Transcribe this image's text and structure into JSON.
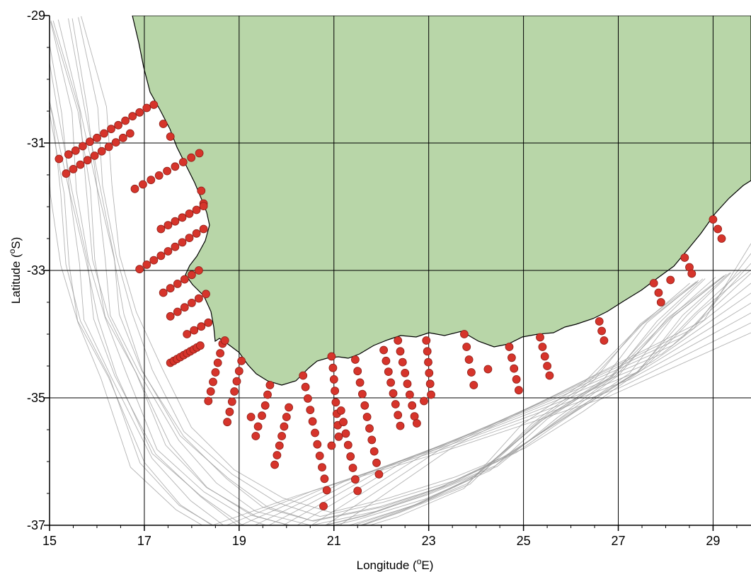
{
  "map": {
    "xlabel": "Longitude (",
    "xlabel_unit": "o",
    "xlabel_end": "E)",
    "ylabel": "Latitude (",
    "ylabel_unit": "o",
    "ylabel_end": "S)",
    "land_color": "#b8d6a8",
    "station_color": "#d6342b",
    "contour_color": "#9a9a9a",
    "xlim": [
      15,
      29.8
    ],
    "ylim": [
      -37,
      -29
    ],
    "x_ticks": [
      "15",
      "17",
      "19",
      "21",
      "23",
      "25",
      "27",
      "29"
    ],
    "y_ticks": [
      "-29",
      "-31",
      "-33",
      "-35",
      "-37"
    ],
    "grid": true
  },
  "chart_data": {
    "type": "scatter",
    "title": "",
    "xlabel": "Longitude (oE)",
    "ylabel": "Latitude (oS)",
    "xlim": [
      15,
      29.8
    ],
    "ylim": [
      -37,
      -29
    ],
    "series": [
      {
        "points": [
          [
            15.2,
            -31.25
          ],
          [
            15.4,
            -31.18
          ],
          [
            15.55,
            -31.12
          ],
          [
            15.7,
            -31.05
          ],
          [
            15.85,
            -30.98
          ],
          [
            16.0,
            -30.92
          ],
          [
            16.15,
            -30.85
          ],
          [
            16.3,
            -30.78
          ],
          [
            16.45,
            -30.72
          ],
          [
            16.6,
            -30.65
          ],
          [
            16.75,
            -30.58
          ],
          [
            16.9,
            -30.52
          ],
          [
            17.05,
            -30.45
          ],
          [
            17.2,
            -30.4
          ]
        ]
      },
      {
        "points": [
          [
            15.35,
            -31.48
          ],
          [
            15.5,
            -31.41
          ],
          [
            15.65,
            -31.34
          ],
          [
            15.8,
            -31.27
          ],
          [
            15.95,
            -31.2
          ],
          [
            16.1,
            -31.13
          ],
          [
            16.25,
            -31.06
          ],
          [
            16.4,
            -30.99
          ],
          [
            16.55,
            -30.92
          ],
          [
            16.7,
            -30.85
          ]
        ]
      },
      {
        "points": [
          [
            17.4,
            -30.7
          ],
          [
            17.55,
            -30.9
          ]
        ]
      },
      {
        "points": [
          [
            16.8,
            -31.72
          ],
          [
            16.97,
            -31.65
          ],
          [
            17.14,
            -31.58
          ],
          [
            17.31,
            -31.51
          ],
          [
            17.48,
            -31.44
          ],
          [
            17.65,
            -31.37
          ],
          [
            17.82,
            -31.3
          ],
          [
            17.99,
            -31.23
          ],
          [
            18.16,
            -31.16
          ]
        ]
      },
      {
        "points": [
          [
            18.2,
            -31.75
          ],
          [
            18.25,
            -31.95
          ]
        ]
      },
      {
        "points": [
          [
            17.35,
            -32.35
          ],
          [
            17.5,
            -32.29
          ],
          [
            17.65,
            -32.23
          ],
          [
            17.8,
            -32.17
          ],
          [
            17.95,
            -32.11
          ],
          [
            18.1,
            -32.05
          ],
          [
            18.25,
            -31.99
          ]
        ]
      },
      {
        "points": [
          [
            16.9,
            -32.98
          ],
          [
            17.05,
            -32.91
          ],
          [
            17.2,
            -32.84
          ],
          [
            17.35,
            -32.77
          ],
          [
            17.5,
            -32.7
          ],
          [
            17.65,
            -32.63
          ],
          [
            17.8,
            -32.56
          ],
          [
            17.95,
            -32.49
          ],
          [
            18.1,
            -32.42
          ],
          [
            18.25,
            -32.35
          ]
        ]
      },
      {
        "points": [
          [
            17.4,
            -33.35
          ],
          [
            17.55,
            -33.28
          ],
          [
            17.7,
            -33.21
          ],
          [
            17.85,
            -33.14
          ],
          [
            18.0,
            -33.07
          ],
          [
            18.15,
            -33.0
          ]
        ]
      },
      {
        "points": [
          [
            17.55,
            -33.72
          ],
          [
            17.7,
            -33.65
          ],
          [
            17.85,
            -33.58
          ],
          [
            18.0,
            -33.51
          ],
          [
            18.15,
            -33.44
          ],
          [
            18.3,
            -33.37
          ]
        ]
      },
      {
        "points": [
          [
            17.9,
            -34.0
          ],
          [
            18.05,
            -33.94
          ],
          [
            18.2,
            -33.88
          ],
          [
            18.35,
            -33.82
          ]
        ]
      },
      {
        "points": [
          [
            17.55,
            -34.45
          ],
          [
            17.62,
            -34.42
          ],
          [
            17.69,
            -34.39
          ],
          [
            17.76,
            -34.36
          ],
          [
            17.83,
            -34.33
          ],
          [
            17.9,
            -34.3
          ],
          [
            17.97,
            -34.27
          ],
          [
            18.04,
            -34.24
          ],
          [
            18.11,
            -34.21
          ],
          [
            18.18,
            -34.18
          ]
        ]
      },
      {
        "points": [
          [
            18.35,
            -35.05
          ],
          [
            18.4,
            -34.9
          ],
          [
            18.45,
            -34.75
          ],
          [
            18.5,
            -34.6
          ],
          [
            18.55,
            -34.45
          ],
          [
            18.6,
            -34.3
          ],
          [
            18.65,
            -34.15
          ],
          [
            18.7,
            -34.1
          ]
        ]
      },
      {
        "points": [
          [
            18.75,
            -35.38
          ],
          [
            18.8,
            -35.22
          ],
          [
            18.85,
            -35.06
          ],
          [
            18.9,
            -34.9
          ],
          [
            18.95,
            -34.74
          ],
          [
            19.0,
            -34.58
          ],
          [
            19.05,
            -34.42
          ]
        ]
      },
      {
        "points": [
          [
            19.25,
            -35.3
          ],
          [
            19.35,
            -35.6
          ],
          [
            19.4,
            -35.45
          ],
          [
            19.48,
            -35.28
          ],
          [
            19.55,
            -35.12
          ],
          [
            19.6,
            -34.95
          ],
          [
            19.65,
            -34.8
          ]
        ]
      },
      {
        "points": [
          [
            19.75,
            -36.05
          ],
          [
            19.8,
            -35.9
          ],
          [
            19.85,
            -35.75
          ],
          [
            19.9,
            -35.6
          ],
          [
            19.95,
            -35.45
          ],
          [
            20.0,
            -35.3
          ],
          [
            20.05,
            -35.15
          ]
        ]
      },
      {
        "points": [
          [
            20.35,
            -34.65
          ],
          [
            20.4,
            -34.83
          ],
          [
            20.45,
            -35.01
          ],
          [
            20.5,
            -35.19
          ],
          [
            20.55,
            -35.37
          ],
          [
            20.6,
            -35.55
          ],
          [
            20.65,
            -35.73
          ],
          [
            20.7,
            -35.91
          ],
          [
            20.75,
            -36.09
          ],
          [
            20.8,
            -36.27
          ],
          [
            20.85,
            -36.45
          ],
          [
            20.78,
            -36.7
          ]
        ]
      },
      {
        "points": [
          [
            20.95,
            -35.75
          ],
          [
            20.95,
            -34.35
          ],
          [
            20.98,
            -34.53
          ],
          [
            21.0,
            -34.71
          ],
          [
            21.02,
            -34.89
          ],
          [
            21.04,
            -35.07
          ],
          [
            21.06,
            -35.25
          ],
          [
            21.08,
            -35.43
          ],
          [
            21.1,
            -35.61
          ]
        ]
      },
      {
        "points": [
          [
            21.15,
            -35.2
          ],
          [
            21.2,
            -35.38
          ],
          [
            21.25,
            -35.56
          ],
          [
            21.3,
            -35.74
          ],
          [
            21.35,
            -35.92
          ],
          [
            21.4,
            -36.1
          ],
          [
            21.45,
            -36.28
          ],
          [
            21.5,
            -36.46
          ]
        ]
      },
      {
        "points": [
          [
            21.45,
            -34.4
          ],
          [
            21.5,
            -34.58
          ],
          [
            21.55,
            -34.76
          ],
          [
            21.6,
            -34.94
          ],
          [
            21.65,
            -35.12
          ],
          [
            21.7,
            -35.3
          ],
          [
            21.75,
            -35.48
          ],
          [
            21.8,
            -35.66
          ],
          [
            21.85,
            -35.84
          ],
          [
            21.9,
            -36.02
          ],
          [
            21.95,
            -36.2
          ]
        ]
      },
      {
        "points": [
          [
            22.05,
            -34.25
          ],
          [
            22.1,
            -34.42
          ],
          [
            22.15,
            -34.59
          ],
          [
            22.2,
            -34.76
          ],
          [
            22.25,
            -34.93
          ],
          [
            22.3,
            -35.1
          ],
          [
            22.35,
            -35.27
          ],
          [
            22.4,
            -35.44
          ]
        ]
      },
      {
        "points": [
          [
            22.35,
            -34.1
          ],
          [
            22.4,
            -34.27
          ],
          [
            22.45,
            -34.44
          ],
          [
            22.5,
            -34.61
          ],
          [
            22.55,
            -34.78
          ],
          [
            22.6,
            -34.95
          ],
          [
            22.65,
            -35.12
          ],
          [
            22.7,
            -35.29
          ],
          [
            22.75,
            -35.4
          ]
        ]
      },
      {
        "points": [
          [
            22.95,
            -34.1
          ],
          [
            22.97,
            -34.27
          ],
          [
            22.99,
            -34.44
          ],
          [
            23.01,
            -34.61
          ],
          [
            23.03,
            -34.78
          ],
          [
            23.05,
            -34.95
          ],
          [
            22.9,
            -35.05
          ]
        ]
      },
      {
        "points": [
          [
            23.75,
            -34.0
          ],
          [
            23.8,
            -34.2
          ],
          [
            23.85,
            -34.4
          ],
          [
            23.9,
            -34.6
          ],
          [
            23.95,
            -34.8
          ]
        ]
      },
      {
        "points": [
          [
            24.25,
            -34.55
          ]
        ]
      },
      {
        "points": [
          [
            24.7,
            -34.2
          ],
          [
            24.75,
            -34.37
          ],
          [
            24.8,
            -34.54
          ],
          [
            24.85,
            -34.71
          ],
          [
            24.9,
            -34.88
          ]
        ]
      },
      {
        "points": [
          [
            25.35,
            -34.05
          ],
          [
            25.4,
            -34.2
          ],
          [
            25.45,
            -34.35
          ],
          [
            25.5,
            -34.5
          ],
          [
            25.55,
            -34.65
          ]
        ]
      },
      {
        "points": [
          [
            26.6,
            -33.8
          ],
          [
            26.65,
            -33.95
          ],
          [
            26.7,
            -34.1
          ]
        ]
      },
      {
        "points": [
          [
            27.75,
            -33.2
          ],
          [
            27.85,
            -33.35
          ],
          [
            27.9,
            -33.5
          ]
        ]
      },
      {
        "points": [
          [
            28.1,
            -33.15
          ]
        ]
      },
      {
        "points": [
          [
            28.4,
            -32.8
          ],
          [
            28.5,
            -32.95
          ],
          [
            28.55,
            -33.05
          ]
        ]
      },
      {
        "points": [
          [
            29.0,
            -32.2
          ],
          [
            29.1,
            -32.35
          ],
          [
            29.18,
            -32.5
          ]
        ]
      }
    ]
  }
}
